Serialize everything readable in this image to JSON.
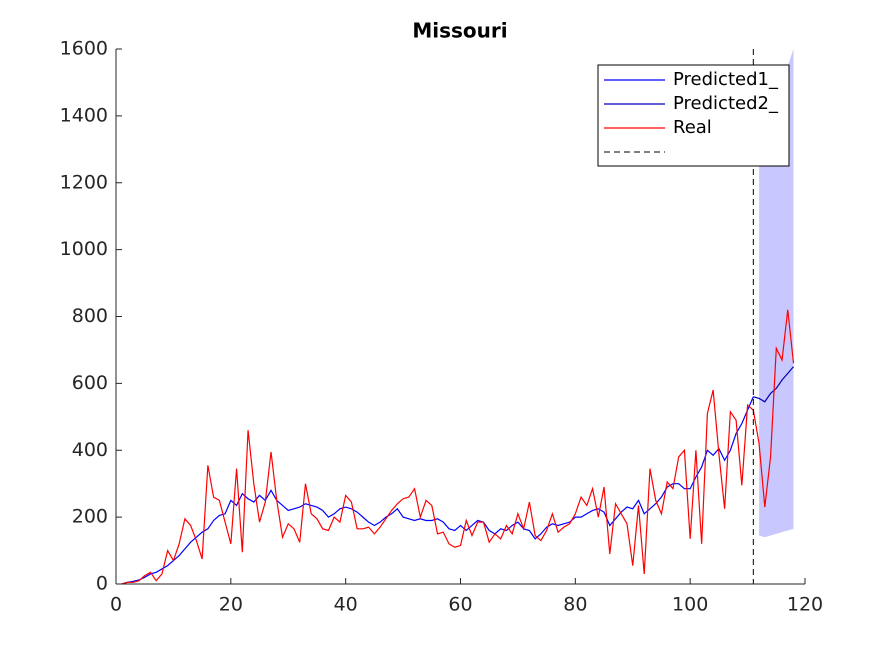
{
  "chart_data": {
    "type": "line",
    "title": "Missouri",
    "xlim": [
      0,
      120
    ],
    "xticks": [
      0,
      20,
      40,
      60,
      80,
      100,
      120
    ],
    "ylim": [
      0,
      1600
    ],
    "yticks": [
      0,
      200,
      400,
      600,
      800,
      1000,
      1200,
      1400,
      1600
    ],
    "grid": false,
    "legend": "northeast",
    "band": {
      "color": "#c8c8ff",
      "x": [
        112,
        113,
        114,
        115,
        116,
        117,
        118
      ],
      "lower": [
        145,
        140,
        145,
        150,
        155,
        160,
        165
      ],
      "upper": [
        1250,
        1300,
        1350,
        1400,
        1450,
        1550,
        1600
      ]
    },
    "vline": {
      "x": 111,
      "color": "#000000"
    },
    "series": [
      {
        "name": "Predicted1_",
        "color": "#0000ff",
        "x": [
          1,
          2,
          3,
          4,
          5,
          6,
          7,
          8,
          9,
          10,
          11,
          12,
          13,
          14,
          15,
          16,
          17,
          18,
          19,
          20,
          21,
          22,
          23,
          24,
          25,
          26,
          27,
          28,
          29,
          30,
          31,
          32,
          33,
          34,
          35,
          36,
          37,
          38,
          39,
          40,
          41,
          42,
          43,
          44,
          45,
          46,
          47,
          48,
          49,
          50,
          51,
          52,
          53,
          54,
          55,
          56,
          57,
          58,
          59,
          60,
          61,
          62,
          63,
          64,
          65,
          66,
          67,
          68,
          69,
          70,
          71,
          72,
          73,
          74,
          75,
          76,
          77,
          78,
          79,
          80,
          81,
          82,
          83,
          84,
          85,
          86,
          87,
          88,
          89,
          90,
          91,
          92,
          93,
          94,
          95,
          96,
          97,
          98,
          99,
          100,
          101,
          102,
          103,
          104,
          105,
          106,
          107,
          108,
          109,
          110,
          111
        ],
        "values": [
          0,
          5,
          8,
          12,
          20,
          30,
          35,
          45,
          55,
          70,
          85,
          105,
          125,
          140,
          155,
          165,
          190,
          205,
          210,
          250,
          235,
          270,
          255,
          245,
          265,
          250,
          280,
          250,
          235,
          220,
          225,
          230,
          240,
          235,
          230,
          220,
          200,
          210,
          225,
          230,
          225,
          215,
          200,
          185,
          175,
          185,
          200,
          210,
          225,
          200,
          195,
          190,
          195,
          190,
          190,
          195,
          185,
          165,
          160,
          175,
          160,
          175,
          190,
          185,
          160,
          150,
          165,
          160,
          175,
          185,
          165,
          160,
          135,
          150,
          170,
          180,
          175,
          180,
          185,
          200,
          200,
          210,
          220,
          225,
          215,
          175,
          195,
          215,
          230,
          225,
          250,
          210,
          225,
          240,
          260,
          290,
          300,
          300,
          285,
          285,
          320,
          350,
          400,
          385,
          405,
          370,
          400,
          450,
          480,
          520,
          560
        ]
      },
      {
        "name": "Predicted2_",
        "color": "#0000b4",
        "x": [
          111,
          112,
          113,
          114,
          115,
          116,
          117,
          118
        ],
        "values": [
          560,
          555,
          545,
          570,
          585,
          610,
          630,
          650
        ]
      },
      {
        "name": "Real",
        "color": "#ff0000",
        "x": [
          1,
          2,
          3,
          4,
          5,
          6,
          7,
          8,
          9,
          10,
          11,
          12,
          13,
          14,
          15,
          16,
          17,
          18,
          19,
          20,
          21,
          22,
          23,
          24,
          25,
          26,
          27,
          28,
          29,
          30,
          31,
          32,
          33,
          34,
          35,
          36,
          37,
          38,
          39,
          40,
          41,
          42,
          43,
          44,
          45,
          46,
          47,
          48,
          49,
          50,
          51,
          52,
          53,
          54,
          55,
          56,
          57,
          58,
          59,
          60,
          61,
          62,
          63,
          64,
          65,
          66,
          67,
          68,
          69,
          70,
          71,
          72,
          73,
          74,
          75,
          76,
          77,
          78,
          79,
          80,
          81,
          82,
          83,
          84,
          85,
          86,
          87,
          88,
          89,
          90,
          91,
          92,
          93,
          94,
          95,
          96,
          97,
          98,
          99,
          100,
          101,
          102,
          103,
          104,
          105,
          106,
          107,
          108,
          109,
          110,
          111,
          112,
          113,
          114,
          115,
          116,
          117,
          118
        ],
        "values": [
          0,
          5,
          5,
          10,
          25,
          35,
          10,
          30,
          100,
          70,
          120,
          195,
          175,
          130,
          75,
          355,
          260,
          250,
          185,
          120,
          345,
          95,
          460,
          300,
          185,
          245,
          395,
          250,
          140,
          180,
          165,
          125,
          300,
          210,
          195,
          165,
          160,
          200,
          185,
          265,
          245,
          165,
          165,
          170,
          150,
          170,
          195,
          220,
          240,
          255,
          260,
          285,
          200,
          250,
          235,
          150,
          155,
          120,
          110,
          115,
          190,
          145,
          185,
          185,
          125,
          150,
          135,
          175,
          150,
          210,
          165,
          245,
          145,
          130,
          160,
          210,
          155,
          170,
          180,
          210,
          260,
          235,
          285,
          200,
          290,
          90,
          240,
          210,
          180,
          55,
          235,
          30,
          345,
          250,
          210,
          305,
          285,
          380,
          400,
          135,
          400,
          120,
          510,
          580,
          390,
          225,
          515,
          490,
          295,
          535,
          520,
          420,
          230,
          380,
          705,
          670,
          820,
          660
        ]
      }
    ]
  }
}
